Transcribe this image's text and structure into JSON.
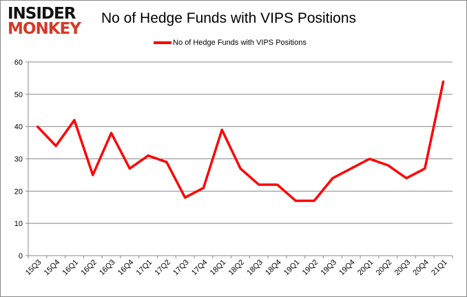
{
  "logo": {
    "line1": "INSIDER",
    "line2": "MONKEY"
  },
  "chart_data": {
    "type": "line",
    "title": "No of Hedge Funds with VIPS Positions",
    "xlabel": "",
    "ylabel": "",
    "categories": [
      "15Q3",
      "15Q4",
      "16Q1",
      "16Q2",
      "16Q3",
      "16Q4",
      "17Q1",
      "17Q2",
      "17Q3",
      "17Q4",
      "18Q1",
      "18Q2",
      "18Q3",
      "18Q4",
      "19Q1",
      "19Q2",
      "19Q3",
      "19Q4",
      "20Q1",
      "20Q2",
      "20Q3",
      "20Q4",
      "21Q1"
    ],
    "series": [
      {
        "name": "No of Hedge Funds with VIPS Positions",
        "color": "#ff0000",
        "values": [
          40,
          34,
          42,
          25,
          38,
          27,
          31,
          29,
          18,
          21,
          39,
          27,
          22,
          22,
          17,
          17,
          24,
          27,
          30,
          28,
          24,
          27,
          54
        ]
      }
    ],
    "ylim": [
      0,
      60
    ],
    "yticks": [
      0,
      10,
      20,
      30,
      40,
      50,
      60
    ],
    "grid": true,
    "legend": "top-center"
  }
}
